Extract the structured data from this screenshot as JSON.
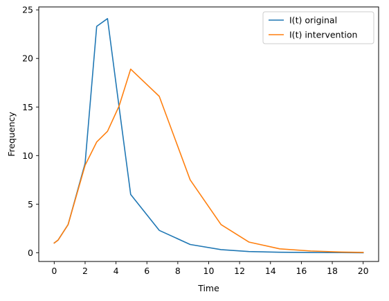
{
  "chart_data": {
    "type": "line",
    "xlabel": "Time",
    "ylabel": "Frequency",
    "xlim": [
      -1,
      21
    ],
    "ylim": [
      -0.9,
      25.3
    ],
    "xticks": [
      0,
      2,
      4,
      6,
      8,
      10,
      12,
      14,
      16,
      18,
      20
    ],
    "yticks": [
      0,
      5,
      10,
      15,
      20,
      25
    ],
    "grid": false,
    "legend_position": "top-right",
    "series": [
      {
        "name": "I(t) original",
        "color": "#1f77b4",
        "x": [
          0,
          0.25,
          0.9,
          2.0,
          2.75,
          3.45,
          4.2,
          4.95,
          6.8,
          8.8,
          10.8,
          12.6,
          14.6,
          16.6,
          18.6,
          20
        ],
        "y": [
          1.0,
          1.3,
          2.9,
          9.2,
          23.3,
          24.1,
          15.0,
          6.0,
          2.3,
          0.85,
          0.32,
          0.12,
          0.05,
          0.02,
          0.01,
          0.0
        ]
      },
      {
        "name": "I(t) intervention",
        "color": "#ff7f0e",
        "x": [
          0,
          0.25,
          0.9,
          2.0,
          2.75,
          3.45,
          4.2,
          4.95,
          6.8,
          8.8,
          10.8,
          12.6,
          14.6,
          16.6,
          18.6,
          20
        ],
        "y": [
          1.0,
          1.3,
          2.9,
          9.0,
          11.4,
          12.5,
          15.1,
          18.9,
          16.1,
          7.5,
          2.9,
          1.1,
          0.4,
          0.18,
          0.07,
          0.03
        ]
      }
    ]
  }
}
